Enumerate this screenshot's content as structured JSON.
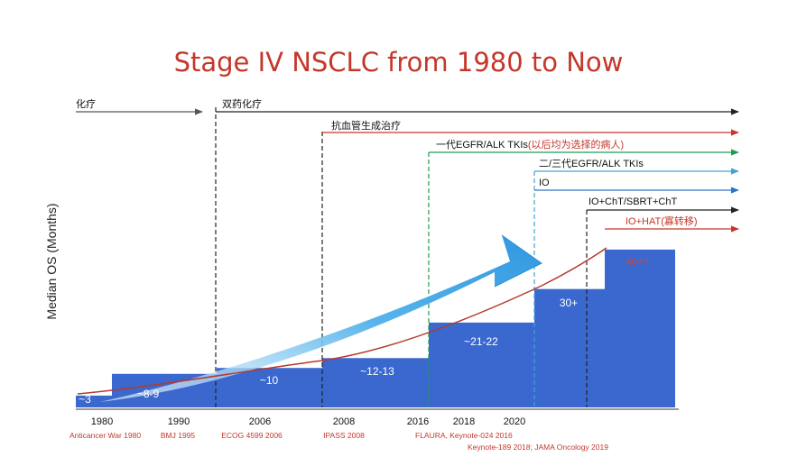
{
  "title": "Stage IV NSCLC from 1980 to Now",
  "chart_data": {
    "type": "bar",
    "title": "Stage IV NSCLC from 1980 to Now",
    "ylabel": "Median OS (Months)",
    "xlabel": "",
    "ylim": [
      0,
      45
    ],
    "years": [
      "1980",
      "1990",
      "2006",
      "2008",
      "2016",
      "2018",
      "2020"
    ],
    "references": [
      "Anticancer War 1980",
      "BMJ 1995",
      "ECOG 4599 2006",
      "IPASS 2008",
      "FLAURA, Keynote-024 2016",
      "Keynote-189 2018; JAMA Oncology 2019"
    ],
    "steps": [
      {
        "label": "~3",
        "value": 3
      },
      {
        "label": "~8-9",
        "value": 8.5
      },
      {
        "label": "~10",
        "value": 10
      },
      {
        "label": "~12-13",
        "value": 12.5
      },
      {
        "label": "~21-22",
        "value": 21.5
      },
      {
        "label": "30+",
        "value": 30
      },
      {
        "label": "40+?",
        "value": 40
      }
    ],
    "therapies": [
      {
        "label": "化疗",
        "color": "#555555"
      },
      {
        "label": "双药化疗",
        "color": "#222222"
      },
      {
        "label": "抗血管生成治疗",
        "color": "#c5372b"
      },
      {
        "label": "一代EGFR/ALK TKIs",
        "note": "(以后均为选择的病人)",
        "color": "#1a9e55"
      },
      {
        "label": "二/三代EGFR/ALK TKIs",
        "color": "#3fa3d6"
      },
      {
        "label": "IO",
        "color": "#2d73c8"
      },
      {
        "label": "IO+ChT/SBRT+ChT",
        "color": "#222222"
      },
      {
        "label": "IO+HAT",
        "note": "(寡转移)",
        "color": "#c5372b"
      }
    ]
  },
  "colors": {
    "bars": "#3a68cf",
    "curve": "#b53a2a",
    "arrow": "#4fb0ea"
  }
}
